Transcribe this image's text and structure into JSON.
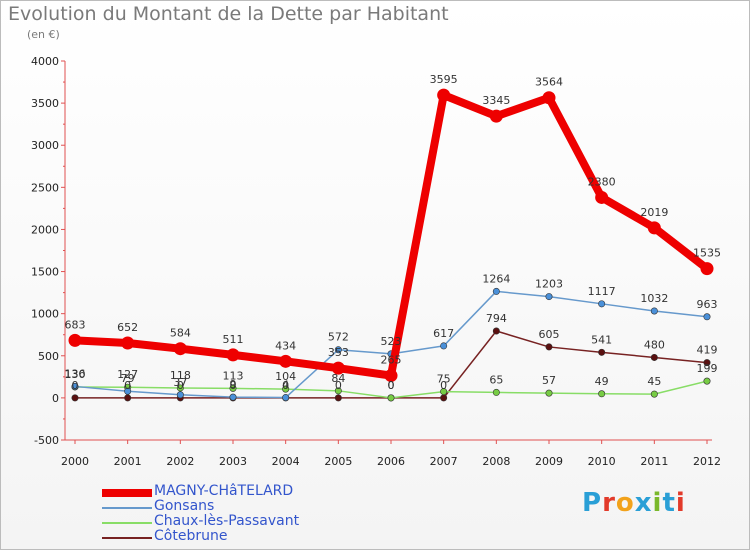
{
  "header": {
    "title": "Evolution du Montant de la Dette par Habitant",
    "subtitle": "(en €)"
  },
  "logo": {
    "text": "Proxiti",
    "colors": [
      "#2a9fd6",
      "#e23a2a",
      "#f2a21b",
      "#2a9fd6",
      "#7ab82b",
      "#2a9fd6",
      "#e23a2a"
    ]
  },
  "chart_data": {
    "type": "line",
    "title": "Evolution du Montant de la Dette par Habitant",
    "subtitle": "(en €)",
    "xlabel": "",
    "ylabel": "",
    "x": [
      "2000",
      "2001",
      "2002",
      "2003",
      "2004",
      "2005",
      "2006",
      "2007",
      "2008",
      "2009",
      "2010",
      "2011",
      "2012"
    ],
    "ylim": [
      -500,
      4000
    ],
    "yticks": [
      -500,
      0,
      500,
      1000,
      1500,
      2000,
      2500,
      3000,
      3500,
      4000
    ],
    "grid": false,
    "legend_position": "bottom-left",
    "series": [
      {
        "name": "MAGNY-CHâTELARD",
        "color": "#ee0000",
        "values": [
          683,
          652,
          584,
          511,
          434,
          353,
          265,
          3595,
          3345,
          3564,
          2380,
          2019,
          1535
        ],
        "labels": [
          "683",
          "652",
          "584",
          "511",
          "434",
          "353",
          "265",
          "3595",
          "3345",
          "3564",
          "2380",
          "2019",
          "1535"
        ]
      },
      {
        "name": "Gonsans",
        "color": "#6699cc",
        "values": [
          136,
          79,
          37,
          9,
          4,
          572,
          523,
          617,
          1264,
          1203,
          1117,
          1032,
          963
        ],
        "labels": [
          "136",
          "79",
          "37",
          "9",
          "4",
          "572",
          "523",
          "617",
          "1264",
          "1203",
          "1117",
          "1032",
          "963"
        ]
      },
      {
        "name": "Chaux-lès-Passavant",
        "color": "#88dd66",
        "values": [
          130,
          127,
          118,
          113,
          104,
          84,
          0,
          75,
          65,
          57,
          49,
          45,
          199
        ],
        "labels": [
          "130",
          "127",
          "118",
          "113",
          "104",
          "84",
          "0",
          "75",
          "65",
          "57",
          "49",
          "45",
          "199"
        ]
      },
      {
        "name": "Côtebrune",
        "color": "#772222",
        "values": [
          0,
          0,
          0,
          0,
          0,
          0,
          0,
          0,
          794,
          605,
          541,
          480,
          419
        ],
        "labels": [
          "0",
          "0",
          "0",
          "0",
          "0",
          "0",
          "0",
          "0",
          "794",
          "605",
          "541",
          "480",
          "419"
        ]
      }
    ]
  }
}
